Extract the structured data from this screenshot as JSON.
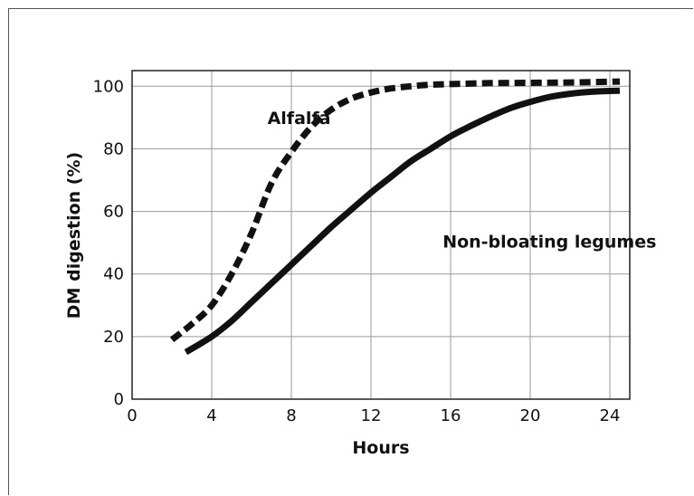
{
  "chart_data": {
    "type": "line",
    "title": "",
    "xlabel": "Hours",
    "ylabel": "DM digestion (%)",
    "xlim": [
      0,
      25
    ],
    "ylim": [
      0,
      105
    ],
    "xticks": [
      0,
      4,
      8,
      12,
      16,
      20,
      24
    ],
    "yticks": [
      0,
      20,
      40,
      60,
      80,
      100
    ],
    "grid": true,
    "series": [
      {
        "name": "Alfalfa",
        "style": "dashed",
        "color": "#111111",
        "x": [
          2,
          3,
          4,
          5,
          6,
          7,
          8,
          9,
          10,
          11,
          12,
          13,
          14,
          15,
          16,
          18,
          20,
          22,
          24.5
        ],
        "y": [
          19,
          24,
          30,
          40,
          53,
          69,
          79,
          87,
          92.5,
          96,
          98,
          99.3,
          100,
          100.5,
          100.7,
          101,
          101.1,
          101.2,
          101.5
        ]
      },
      {
        "name": "Non-bloating legumes",
        "style": "solid",
        "color": "#111111",
        "x": [
          2.7,
          4,
          5,
          6,
          7,
          8,
          9,
          10,
          11,
          12,
          13,
          14,
          15,
          16,
          17,
          18,
          19,
          20,
          21,
          22,
          23,
          24.5
        ],
        "y": [
          15,
          20,
          25,
          31,
          37,
          43,
          49,
          55,
          60.5,
          66,
          71,
          76,
          80,
          84,
          87.3,
          90.3,
          93,
          95,
          96.6,
          97.6,
          98.2,
          98.6
        ]
      }
    ],
    "annotations": [
      {
        "text": "Alfalfa",
        "x": 6.8,
        "y": 88
      },
      {
        "text": "Non-bloating legumes",
        "x": 15.6,
        "y": 48.5
      }
    ]
  }
}
